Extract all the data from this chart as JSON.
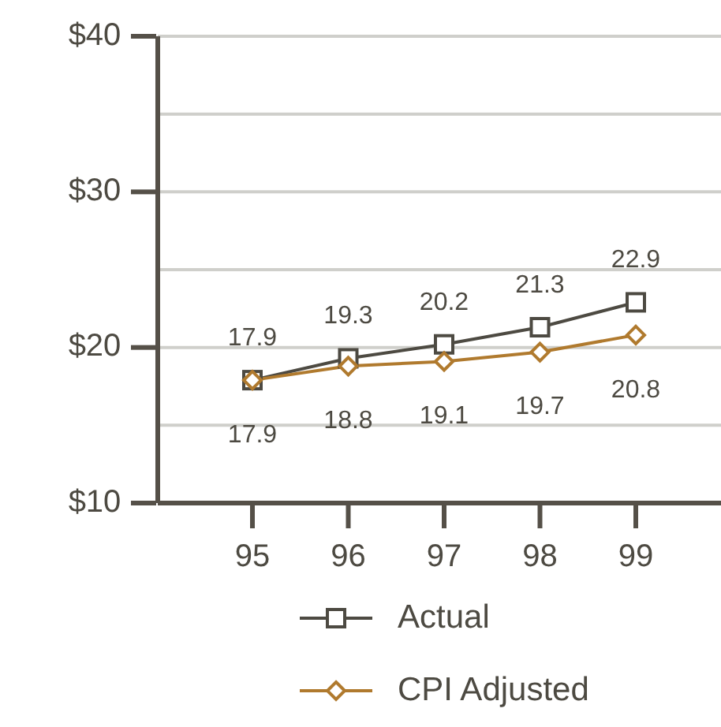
{
  "chart_data": {
    "type": "line",
    "categories": [
      "95",
      "96",
      "97",
      "98",
      "99"
    ],
    "series": [
      {
        "name": "Actual",
        "color": "#4d4a42",
        "marker": "square",
        "values": [
          17.9,
          19.3,
          20.2,
          21.3,
          22.9
        ]
      },
      {
        "name": "CPI Adjusted",
        "color": "#b07a2e",
        "marker": "diamond",
        "values": [
          17.9,
          18.8,
          19.1,
          19.7,
          20.8
        ]
      }
    ],
    "ylim": [
      10,
      40
    ],
    "yticks": [
      {
        "value": 10,
        "label": "$10"
      },
      {
        "value": 15,
        "label": null
      },
      {
        "value": 20,
        "label": "$20"
      },
      {
        "value": 25,
        "label": null
      },
      {
        "value": 30,
        "label": "$30"
      },
      {
        "value": 35,
        "label": null
      },
      {
        "value": 40,
        "label": "$40"
      }
    ],
    "grid": "y",
    "legend": "bottom",
    "data_labels": true
  }
}
